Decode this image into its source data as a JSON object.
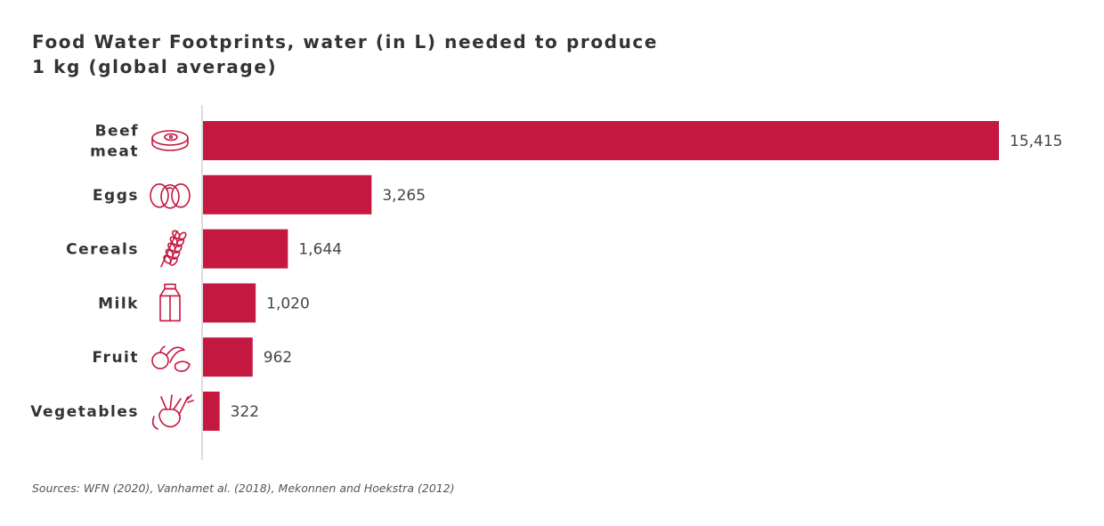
{
  "title_lines": [
    "Food Water Footprints, water (in L) needed to produce",
    "1 kg (global average)"
  ],
  "source": "Sources: WFN (2020), Vanhamet al. (2018), Mekonnen and Hoekstra (2012)",
  "colors": {
    "bar": "#c41840",
    "axis": "#dddddd",
    "text": "#333333"
  },
  "chart_data": {
    "type": "bar",
    "orientation": "horizontal",
    "title": "Food Water Footprints, water (in L) needed to produce 1 kg (global average)",
    "categories": [
      {
        "label_lines": [
          "Beef",
          "meat"
        ],
        "icon": "steak-icon"
      },
      {
        "label_lines": [
          "Eggs"
        ],
        "icon": "eggs-icon"
      },
      {
        "label_lines": [
          "Cereals"
        ],
        "icon": "wheat-icon"
      },
      {
        "label_lines": [
          "Milk"
        ],
        "icon": "milk-carton-icon"
      },
      {
        "label_lines": [
          "Fruit"
        ],
        "icon": "fruit-icon"
      },
      {
        "label_lines": [
          "Vegetables"
        ],
        "icon": "vegetables-icon"
      }
    ],
    "values": [
      15415,
      3265,
      1644,
      1020,
      962,
      322
    ],
    "value_labels": [
      "15,415",
      "3,265",
      "1,644",
      "1,020",
      "962",
      "322"
    ],
    "xlim": [
      0,
      15415
    ],
    "grid": false,
    "legend": "none"
  }
}
